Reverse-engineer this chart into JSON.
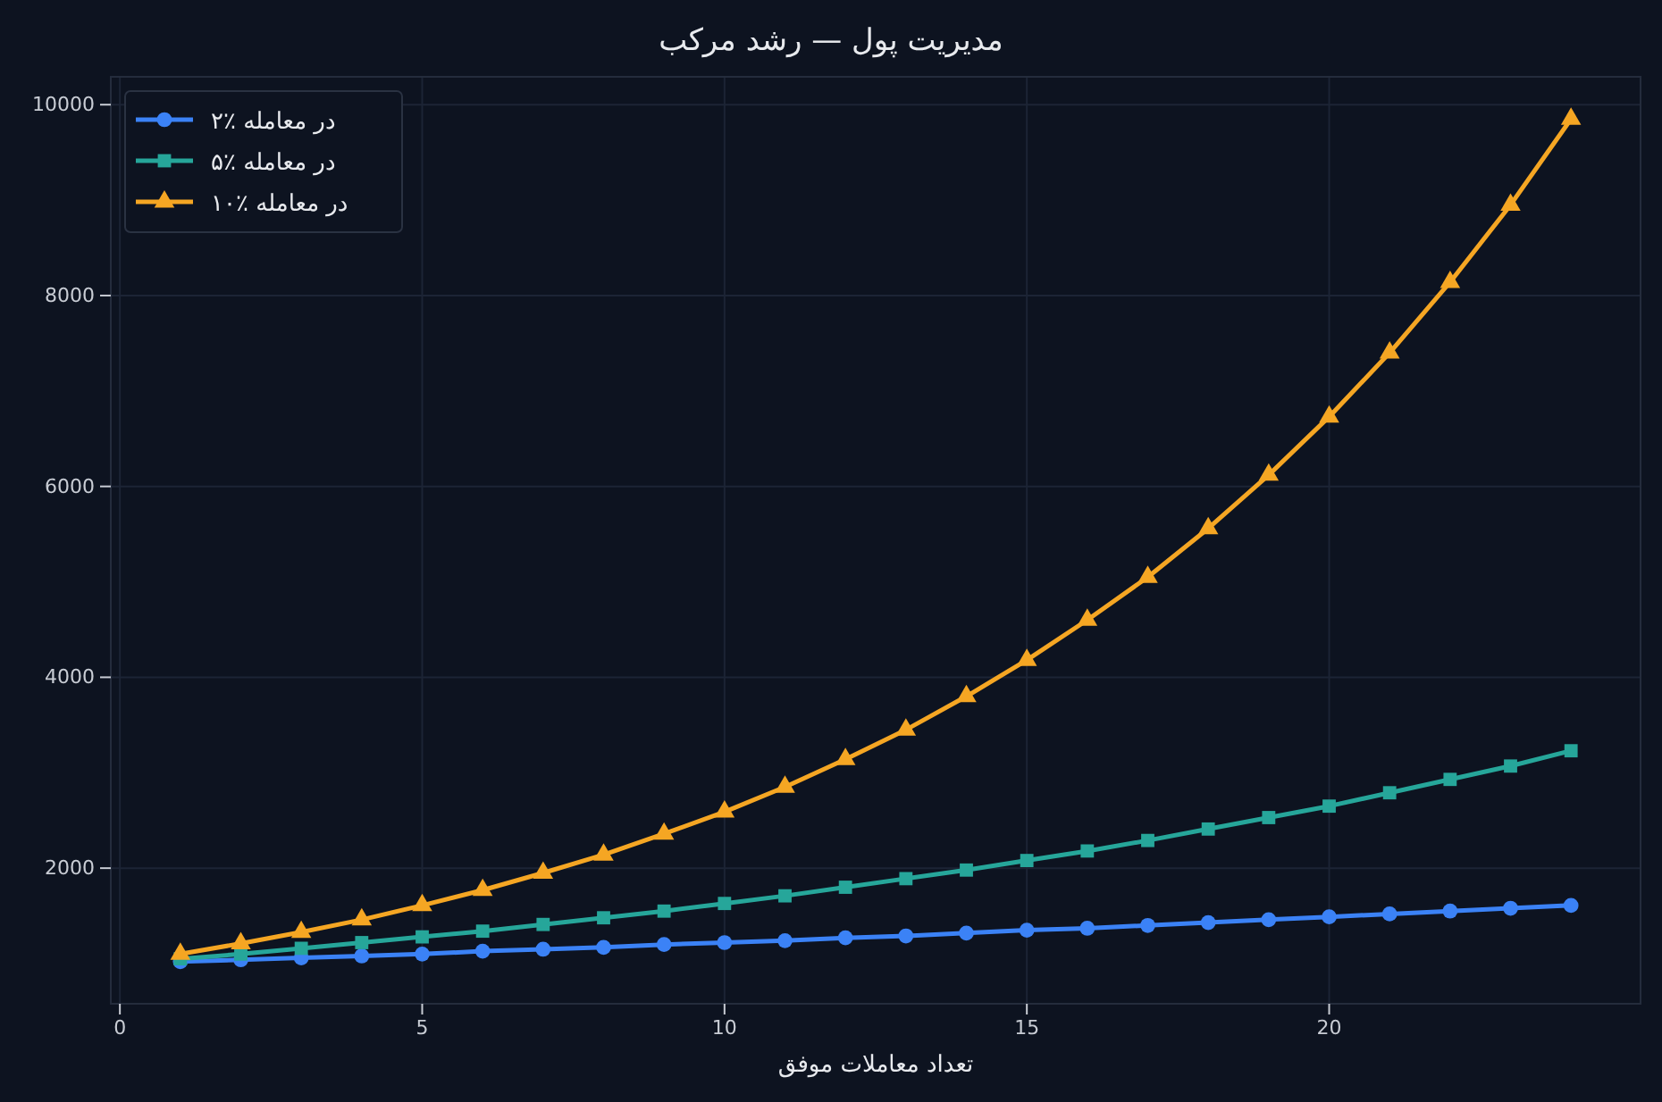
{
  "chart_data": {
    "type": "line",
    "title": "مدیریت پول — رشد مرکب",
    "xlabel": "تعداد معاملات موفق",
    "x": [
      1,
      2,
      3,
      4,
      5,
      6,
      7,
      8,
      9,
      10,
      11,
      12,
      13,
      14,
      15,
      16,
      17,
      18,
      19,
      20,
      21,
      22,
      23,
      24
    ],
    "series": [
      {
        "name": "۲٪ در معامله",
        "color": "#3b82f6",
        "marker": "circle",
        "values": [
          1020,
          1040,
          1060,
          1080,
          1100,
          1130,
          1150,
          1170,
          1200,
          1220,
          1240,
          1270,
          1290,
          1320,
          1350,
          1370,
          1400,
          1430,
          1460,
          1490,
          1520,
          1550,
          1580,
          1610
        ]
      },
      {
        "name": "۵٪ در معامله",
        "color": "#26a69a",
        "marker": "square",
        "values": [
          1050,
          1100,
          1160,
          1220,
          1280,
          1340,
          1410,
          1480,
          1550,
          1630,
          1710,
          1800,
          1890,
          1980,
          2080,
          2180,
          2290,
          2410,
          2530,
          2650,
          2790,
          2930,
          3070,
          3230
        ]
      },
      {
        "name": "۱۰٪ در معامله",
        "color": "#f5a623",
        "marker": "triangle",
        "values": [
          1100,
          1210,
          1330,
          1460,
          1610,
          1770,
          1950,
          2140,
          2360,
          2590,
          2850,
          3140,
          3450,
          3800,
          4180,
          4600,
          5050,
          5560,
          6120,
          6730,
          7400,
          8140,
          8950,
          9850
        ]
      }
    ],
    "xlim": [
      -0.15,
      25.15
    ],
    "xticks": [
      0,
      5,
      10,
      15,
      20
    ],
    "ylim": [
      579,
      10292
    ],
    "yticks": [
      2000,
      4000,
      6000,
      8000,
      10000
    ],
    "grid": true,
    "legend": "top left",
    "line_style": "solid"
  }
}
